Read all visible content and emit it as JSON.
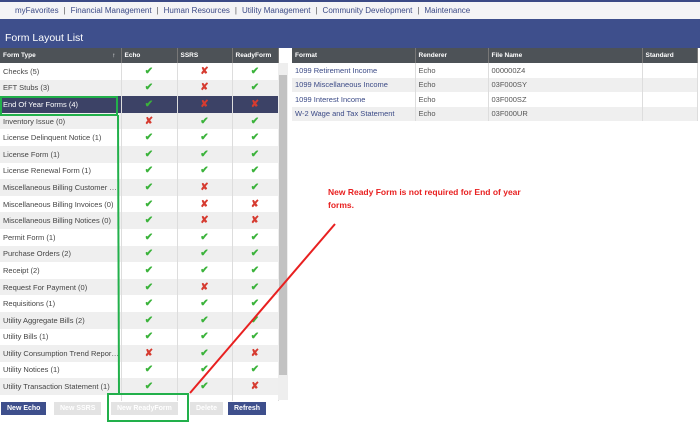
{
  "nav": [
    "myFavorites",
    "Financial Management",
    "Human Resources",
    "Utility Management",
    "Community Development",
    "Maintenance"
  ],
  "page_title": "Form Layout List",
  "left_table": {
    "headers": [
      "Form Type",
      "Echo",
      "SSRS",
      "ReadyForm"
    ],
    "rows": [
      [
        "Checks (5)",
        "ok",
        "no",
        "ok"
      ],
      [
        "EFT Stubs (3)",
        "ok",
        "no",
        "ok"
      ],
      [
        "End Of Year Forms (4)",
        "ok",
        "no",
        "no"
      ],
      [
        "Inventory Issue (0)",
        "no",
        "ok",
        "ok"
      ],
      [
        "License Delinquent Notice (1)",
        "ok",
        "ok",
        "ok"
      ],
      [
        "License Form (1)",
        "ok",
        "ok",
        "ok"
      ],
      [
        "License Renewal Form (1)",
        "ok",
        "ok",
        "ok"
      ],
      [
        "Miscellaneous Billing Customer St...",
        "ok",
        "no",
        "ok"
      ],
      [
        "Miscellaneous Billing Invoices (0)",
        "ok",
        "no",
        "no"
      ],
      [
        "Miscellaneous Billing Notices (0)",
        "ok",
        "no",
        "no"
      ],
      [
        "Permit Form (1)",
        "ok",
        "ok",
        "ok"
      ],
      [
        "Purchase Orders (2)",
        "ok",
        "ok",
        "ok"
      ],
      [
        "Receipt (2)",
        "ok",
        "ok",
        "ok"
      ],
      [
        "Request For Payment (0)",
        "ok",
        "no",
        "ok"
      ],
      [
        "Requisitions (1)",
        "ok",
        "ok",
        "ok"
      ],
      [
        "Utility Aggregate Bills (2)",
        "ok",
        "ok",
        "ok"
      ],
      [
        "Utility Bills (1)",
        "ok",
        "ok",
        "ok"
      ],
      [
        "Utility Consumption Trend Report ...",
        "no",
        "ok",
        "no"
      ],
      [
        "Utility Notices (1)",
        "ok",
        "ok",
        "ok"
      ],
      [
        "Utility Transaction Statement (1)",
        "ok",
        "ok",
        "no"
      ]
    ],
    "selected_index": 2
  },
  "right_table": {
    "headers": [
      "Format",
      "Renderer",
      "File Name",
      "Standard"
    ],
    "rows": [
      [
        "1099 Retirement Income",
        "Echo",
        "000000Z4",
        ""
      ],
      [
        "1099 Miscellaneous Income",
        "Echo",
        "03F000SY",
        ""
      ],
      [
        "1099 Interest Income",
        "Echo",
        "03F000SZ",
        ""
      ],
      [
        "W-2 Wage and Tax Statement",
        "Echo",
        "03F000UR",
        ""
      ]
    ]
  },
  "buttons": {
    "new_echo": "New Echo",
    "new_ssrs": "New SSRS",
    "new_readyform": "New ReadyForm",
    "delete": "Delete",
    "refresh": "Refresh"
  },
  "annotation": "New Ready Form is not required for End of year forms.",
  "colors": {
    "header": "#3e4f8c",
    "check": "#3bb33b",
    "cross": "#d63b30",
    "annotation_box": "#22b04b",
    "annotation_line": "#e82020"
  }
}
